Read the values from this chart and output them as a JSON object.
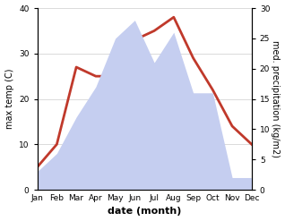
{
  "months": [
    "Jan",
    "Feb",
    "Mar",
    "Apr",
    "May",
    "Jun",
    "Jul",
    "Aug",
    "Sep",
    "Oct",
    "Nov",
    "Dec"
  ],
  "temperature": [
    5,
    10,
    27,
    25,
    25,
    33,
    35,
    38,
    29,
    22,
    14,
    10
  ],
  "precipitation": [
    3,
    6,
    12,
    17,
    25,
    28,
    21,
    26,
    16,
    16,
    2,
    2
  ],
  "temp_color": "#c0392b",
  "precip_fill_color": "#c5cef0",
  "temp_ylim": [
    0,
    40
  ],
  "precip_ylim": [
    0,
    30
  ],
  "temp_ylabel": "max temp (C)",
  "precip_ylabel": "med. precipitation (kg/m2)",
  "xlabel": "date (month)",
  "temp_yticks": [
    0,
    10,
    20,
    30,
    40
  ],
  "precip_yticks": [
    0,
    5,
    10,
    15,
    20,
    25,
    30
  ],
  "bg_color": "#ffffff",
  "temp_linewidth": 2.0,
  "ylabel_fontsize": 7,
  "xlabel_fontsize": 8,
  "tick_fontsize": 6.5
}
